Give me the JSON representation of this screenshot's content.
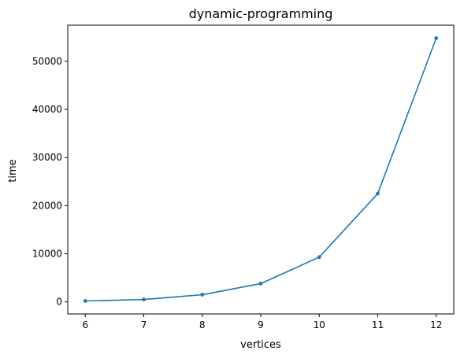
{
  "chart_data": {
    "type": "line",
    "title": "dynamic-programming",
    "xlabel": "vertices",
    "ylabel": "time",
    "x": [
      6,
      7,
      8,
      9,
      10,
      11,
      12
    ],
    "series": [
      {
        "values": [
          200,
          500,
          1500,
          3800,
          9300,
          22500,
          54800
        ],
        "color": "#1f77b4",
        "marker": "circle"
      }
    ],
    "xlim": [
      5.7,
      12.3
    ],
    "ylim": [
      -2500,
      57500
    ],
    "xticks": [
      6,
      7,
      8,
      9,
      10,
      11,
      12
    ],
    "yticks": [
      0,
      10000,
      20000,
      30000,
      40000,
      50000
    ],
    "grid": false,
    "legend": false
  }
}
